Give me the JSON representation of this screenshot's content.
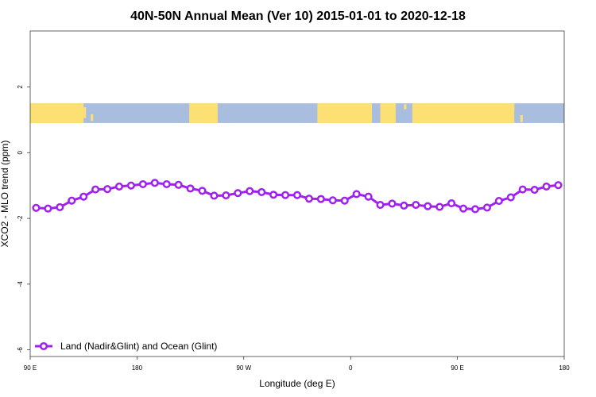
{
  "chart_data": {
    "type": "line",
    "title": "40N-50N Annual Mean (Ver 10)   2015-01-01 to 2020-12-18",
    "xlabel": "Longitude (deg E)",
    "ylabel": "XCO2 - MLO trend (ppm)",
    "x_ticks": [
      {
        "value": 90,
        "label": "90 E"
      },
      {
        "value": 180,
        "label": "180"
      },
      {
        "value": 270,
        "label": "90 W"
      },
      {
        "value": 360,
        "label": "0"
      },
      {
        "value": 450,
        "label": "90 E"
      },
      {
        "value": 540,
        "label": "180"
      }
    ],
    "y_ticks": [
      {
        "value": 2,
        "label": "2"
      },
      {
        "value": 0,
        "label": "0"
      },
      {
        "value": -2,
        "label": "-2"
      },
      {
        "value": -4,
        "label": "-4"
      },
      {
        "value": -6,
        "label": "-6"
      }
    ],
    "xlim": [
      90,
      540
    ],
    "ylim": [
      -6.2,
      3.7
    ],
    "grid": false,
    "legend_position": "bottom-left",
    "map_band": {
      "lat_range": "40N-50N",
      "y_range": [
        0.9,
        1.5
      ],
      "land_color": "#fde073",
      "ocean_color": "#a9bedf"
    },
    "series": [
      {
        "name": "Land (Nadir&Glint) and Ocean (Glint)",
        "color": "#a020f0",
        "x": [
          95,
          105,
          115,
          125,
          135,
          145,
          155,
          165,
          175,
          185,
          195,
          205,
          215,
          225,
          235,
          245,
          255,
          265,
          275,
          285,
          295,
          305,
          315,
          325,
          335,
          345,
          355,
          365,
          375,
          385,
          395,
          405,
          415,
          425,
          435,
          445,
          455,
          465,
          475,
          485,
          495,
          505,
          515,
          525,
          535
        ],
        "y": [
          -1.68,
          -1.7,
          -1.66,
          -1.46,
          -1.34,
          -1.12,
          -1.11,
          -1.03,
          -1.0,
          -0.96,
          -0.92,
          -0.96,
          -0.98,
          -1.09,
          -1.16,
          -1.31,
          -1.3,
          -1.23,
          -1.17,
          -1.2,
          -1.28,
          -1.29,
          -1.29,
          -1.4,
          -1.41,
          -1.45,
          -1.46,
          -1.26,
          -1.34,
          -1.59,
          -1.55,
          -1.61,
          -1.59,
          -1.63,
          -1.65,
          -1.54,
          -1.7,
          -1.72,
          -1.67,
          -1.47,
          -1.36,
          -1.12,
          -1.13,
          -1.03,
          -0.99
        ]
      }
    ]
  }
}
